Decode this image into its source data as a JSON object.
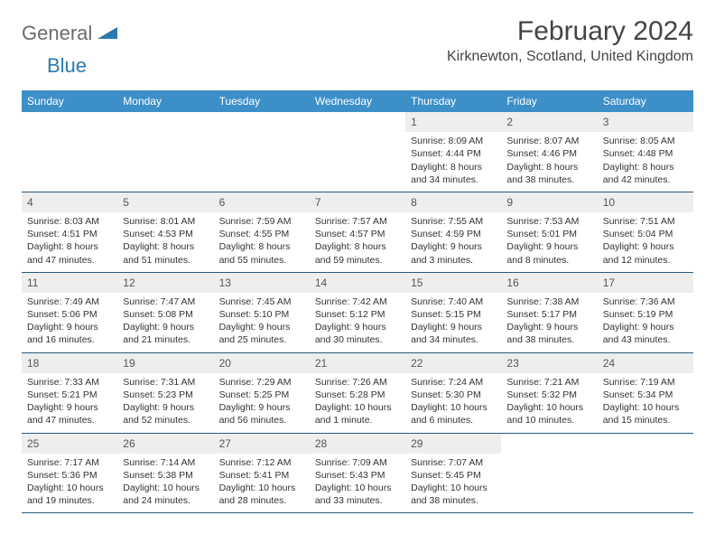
{
  "logo": {
    "gray": "General",
    "blue": "Blue"
  },
  "header": {
    "month_title": "February 2024",
    "location": "Kirknewton, Scotland, United Kingdom"
  },
  "colors": {
    "header_bg": "#3d8fc7",
    "header_text": "#ffffff",
    "daynum_bg": "#eeeeee",
    "row_border": "#2a5a7a",
    "text": "#333333",
    "logo_gray": "#6b6b6b",
    "logo_blue": "#2a7ab0"
  },
  "weekdays": [
    "Sunday",
    "Monday",
    "Tuesday",
    "Wednesday",
    "Thursday",
    "Friday",
    "Saturday"
  ],
  "layout": {
    "first_weekday_index": 4,
    "days_in_month": 29
  },
  "days": {
    "1": {
      "sunrise": "8:09 AM",
      "sunset": "4:44 PM",
      "daylight1": "Daylight: 8 hours",
      "daylight2": "and 34 minutes."
    },
    "2": {
      "sunrise": "8:07 AM",
      "sunset": "4:46 PM",
      "daylight1": "Daylight: 8 hours",
      "daylight2": "and 38 minutes."
    },
    "3": {
      "sunrise": "8:05 AM",
      "sunset": "4:48 PM",
      "daylight1": "Daylight: 8 hours",
      "daylight2": "and 42 minutes."
    },
    "4": {
      "sunrise": "8:03 AM",
      "sunset": "4:51 PM",
      "daylight1": "Daylight: 8 hours",
      "daylight2": "and 47 minutes."
    },
    "5": {
      "sunrise": "8:01 AM",
      "sunset": "4:53 PM",
      "daylight1": "Daylight: 8 hours",
      "daylight2": "and 51 minutes."
    },
    "6": {
      "sunrise": "7:59 AM",
      "sunset": "4:55 PM",
      "daylight1": "Daylight: 8 hours",
      "daylight2": "and 55 minutes."
    },
    "7": {
      "sunrise": "7:57 AM",
      "sunset": "4:57 PM",
      "daylight1": "Daylight: 8 hours",
      "daylight2": "and 59 minutes."
    },
    "8": {
      "sunrise": "7:55 AM",
      "sunset": "4:59 PM",
      "daylight1": "Daylight: 9 hours",
      "daylight2": "and 3 minutes."
    },
    "9": {
      "sunrise": "7:53 AM",
      "sunset": "5:01 PM",
      "daylight1": "Daylight: 9 hours",
      "daylight2": "and 8 minutes."
    },
    "10": {
      "sunrise": "7:51 AM",
      "sunset": "5:04 PM",
      "daylight1": "Daylight: 9 hours",
      "daylight2": "and 12 minutes."
    },
    "11": {
      "sunrise": "7:49 AM",
      "sunset": "5:06 PM",
      "daylight1": "Daylight: 9 hours",
      "daylight2": "and 16 minutes."
    },
    "12": {
      "sunrise": "7:47 AM",
      "sunset": "5:08 PM",
      "daylight1": "Daylight: 9 hours",
      "daylight2": "and 21 minutes."
    },
    "13": {
      "sunrise": "7:45 AM",
      "sunset": "5:10 PM",
      "daylight1": "Daylight: 9 hours",
      "daylight2": "and 25 minutes."
    },
    "14": {
      "sunrise": "7:42 AM",
      "sunset": "5:12 PM",
      "daylight1": "Daylight: 9 hours",
      "daylight2": "and 30 minutes."
    },
    "15": {
      "sunrise": "7:40 AM",
      "sunset": "5:15 PM",
      "daylight1": "Daylight: 9 hours",
      "daylight2": "and 34 minutes."
    },
    "16": {
      "sunrise": "7:38 AM",
      "sunset": "5:17 PM",
      "daylight1": "Daylight: 9 hours",
      "daylight2": "and 38 minutes."
    },
    "17": {
      "sunrise": "7:36 AM",
      "sunset": "5:19 PM",
      "daylight1": "Daylight: 9 hours",
      "daylight2": "and 43 minutes."
    },
    "18": {
      "sunrise": "7:33 AM",
      "sunset": "5:21 PM",
      "daylight1": "Daylight: 9 hours",
      "daylight2": "and 47 minutes."
    },
    "19": {
      "sunrise": "7:31 AM",
      "sunset": "5:23 PM",
      "daylight1": "Daylight: 9 hours",
      "daylight2": "and 52 minutes."
    },
    "20": {
      "sunrise": "7:29 AM",
      "sunset": "5:25 PM",
      "daylight1": "Daylight: 9 hours",
      "daylight2": "and 56 minutes."
    },
    "21": {
      "sunrise": "7:26 AM",
      "sunset": "5:28 PM",
      "daylight1": "Daylight: 10 hours",
      "daylight2": "and 1 minute."
    },
    "22": {
      "sunrise": "7:24 AM",
      "sunset": "5:30 PM",
      "daylight1": "Daylight: 10 hours",
      "daylight2": "and 6 minutes."
    },
    "23": {
      "sunrise": "7:21 AM",
      "sunset": "5:32 PM",
      "daylight1": "Daylight: 10 hours",
      "daylight2": "and 10 minutes."
    },
    "24": {
      "sunrise": "7:19 AM",
      "sunset": "5:34 PM",
      "daylight1": "Daylight: 10 hours",
      "daylight2": "and 15 minutes."
    },
    "25": {
      "sunrise": "7:17 AM",
      "sunset": "5:36 PM",
      "daylight1": "Daylight: 10 hours",
      "daylight2": "and 19 minutes."
    },
    "26": {
      "sunrise": "7:14 AM",
      "sunset": "5:38 PM",
      "daylight1": "Daylight: 10 hours",
      "daylight2": "and 24 minutes."
    },
    "27": {
      "sunrise": "7:12 AM",
      "sunset": "5:41 PM",
      "daylight1": "Daylight: 10 hours",
      "daylight2": "and 28 minutes."
    },
    "28": {
      "sunrise": "7:09 AM",
      "sunset": "5:43 PM",
      "daylight1": "Daylight: 10 hours",
      "daylight2": "and 33 minutes."
    },
    "29": {
      "sunrise": "7:07 AM",
      "sunset": "5:45 PM",
      "daylight1": "Daylight: 10 hours",
      "daylight2": "and 38 minutes."
    }
  },
  "labels": {
    "sunrise_prefix": "Sunrise: ",
    "sunset_prefix": "Sunset: "
  }
}
